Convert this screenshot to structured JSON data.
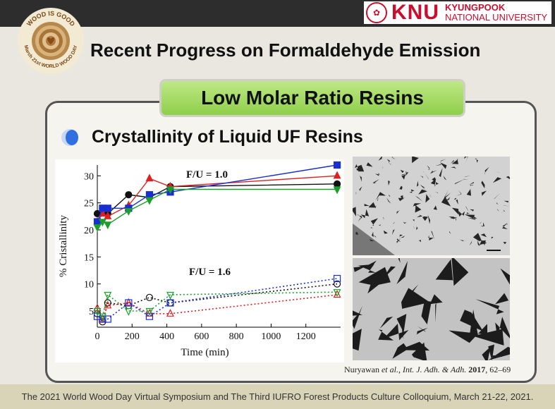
{
  "header": {
    "logo_text_top": "WOOD IS GOOD",
    "logo_text_bottom": "March 21st WORLD WOOD DAY",
    "university_short": "KNU",
    "university_name_1": "KYUNGPOOK",
    "university_name_2": "NATIONAL UNIVERSITY"
  },
  "slide": {
    "title": "Recent Progress on Formaldehyde Emission",
    "banner": "Low Molar Ratio Resins",
    "subtitle": "Crystallinity of Liquid UF Resins",
    "citation_authors": "Nuryawan ",
    "citation_etal": "et al., Int. J. Adh. & Adh. ",
    "citation_year": "2017",
    "citation_pages": ", 62–69"
  },
  "footer": {
    "text": "The 2021 World Wood Day Virtual Symposium and The Third IUFRO Forest Products Culture Colloquium, March 21-22, 2021."
  },
  "colors": {
    "red": "#e02020",
    "blue": "#1a2fd0",
    "green": "#1aa02a",
    "black": "#111111",
    "knu_red": "#c8102e"
  },
  "chart_data": {
    "type": "line",
    "xlabel": "Time (min)",
    "ylabel": "% Cristallinity",
    "xlim": [
      0,
      1400
    ],
    "ylim": [
      2,
      32
    ],
    "xticks": [
      0,
      200,
      400,
      600,
      800,
      1000,
      1200
    ],
    "yticks": [
      5,
      10,
      15,
      20,
      25,
      30
    ],
    "annotations": [
      "F/U = 1.0",
      "F/U = 1.6"
    ],
    "series": [
      {
        "group": "F/U = 1.0",
        "color": "#111111",
        "marker": "circle",
        "style": "solid",
        "x": [
          0,
          30,
          60,
          180,
          300,
          420,
          1380
        ],
        "y": [
          23,
          24,
          23,
          26.5,
          26,
          28,
          28.5
        ]
      },
      {
        "group": "F/U = 1.0",
        "color": "#e02020",
        "marker": "triangle-up",
        "style": "solid",
        "x": [
          0,
          30,
          60,
          180,
          300,
          420,
          1380
        ],
        "y": [
          21.5,
          23,
          22.5,
          24.5,
          29.5,
          28,
          30
        ]
      },
      {
        "group": "F/U = 1.0",
        "color": "#1a2fd0",
        "marker": "square",
        "style": "solid",
        "x": [
          0,
          30,
          60,
          180,
          300,
          420,
          1380
        ],
        "y": [
          21.5,
          24,
          24,
          24,
          26.5,
          27,
          32
        ]
      },
      {
        "group": "F/U = 1.0",
        "color": "#1aa02a",
        "marker": "triangle-down",
        "style": "solid",
        "x": [
          0,
          30,
          60,
          180,
          300,
          420,
          1380
        ],
        "y": [
          20.5,
          21.5,
          21,
          23.5,
          25.5,
          27.5,
          27.5
        ]
      },
      {
        "group": "F/U = 1.6",
        "color": "#111111",
        "marker": "circle",
        "style": "dotted",
        "x": [
          0,
          30,
          60,
          180,
          300,
          420,
          1380
        ],
        "y": [
          4.5,
          3,
          6.5,
          6,
          7.5,
          6.5,
          10
        ]
      },
      {
        "group": "F/U = 1.6",
        "color": "#e02020",
        "marker": "triangle-up",
        "style": "dotted",
        "x": [
          0,
          30,
          60,
          180,
          300,
          420,
          1380
        ],
        "y": [
          5.5,
          3.5,
          6,
          6.5,
          4.5,
          4.5,
          8
        ]
      },
      {
        "group": "F/U = 1.6",
        "color": "#1a2fd0",
        "marker": "square",
        "style": "dotted",
        "x": [
          0,
          30,
          60,
          180,
          300,
          420,
          1380
        ],
        "y": [
          4,
          3.5,
          3.5,
          6.5,
          4,
          6.5,
          11
        ]
      },
      {
        "group": "F/U = 1.6",
        "color": "#1aa02a",
        "marker": "triangle-down",
        "style": "dotted",
        "x": [
          0,
          30,
          60,
          180,
          300,
          420,
          1380
        ],
        "y": [
          5,
          4,
          8,
          5,
          5,
          8,
          8.5
        ]
      }
    ]
  }
}
